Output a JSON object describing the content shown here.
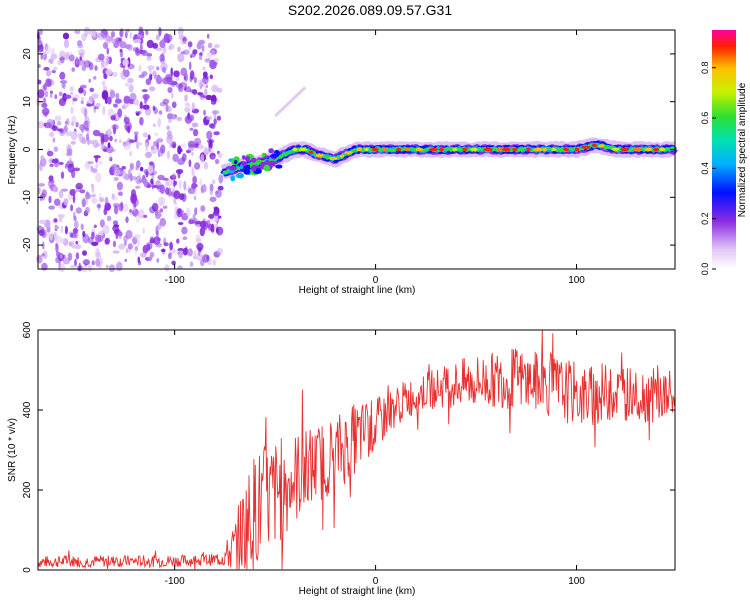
{
  "title": "S202.2026.089.09.57.G31",
  "colors": {
    "snr_line": "#e83030",
    "noise_purple": "#8a2be2",
    "background": "#ffffff"
  },
  "chart_data": [
    {
      "type": "heatmap",
      "name": "spectrogram",
      "xlabel": "Height of straight line (km)",
      "ylabel": "Frequency (Hz)",
      "xlim": [
        -168,
        149
      ],
      "ylim": [
        -25,
        25
      ],
      "xticks": [
        -100,
        0,
        100
      ],
      "xtick_labels": [
        "-100",
        "0",
        "100"
      ],
      "yticks": [
        -20,
        -10,
        0,
        10,
        20
      ],
      "ytick_labels": [
        "-20",
        "-10",
        "0",
        "10",
        "20"
      ],
      "noise_region_x": [
        -168,
        -77
      ],
      "signal_onset_x": -76,
      "signal_trace": {
        "x": [
          -76,
          -70,
          -60,
          -50,
          -45,
          -40,
          -35,
          -30,
          -20,
          -10,
          0,
          20,
          40,
          60,
          80,
          100,
          110,
          120,
          130,
          140,
          149
        ],
        "freq": [
          -5,
          -4,
          -3,
          -2,
          -1,
          0,
          0,
          -1,
          -2,
          0,
          0,
          0,
          0,
          0,
          0,
          0,
          1,
          0,
          0,
          0,
          0
        ]
      },
      "faint_streak": {
        "x": [
          -50,
          -35
        ],
        "freq": [
          7,
          13
        ]
      },
      "colorbar": {
        "label": "Normalized spectral amplitude",
        "range": [
          0,
          0.95
        ],
        "ticks": [
          0.0,
          0.2,
          0.4,
          0.6,
          0.8
        ],
        "tick_labels": [
          "0.0",
          "0.2",
          "0.4",
          "0.6",
          "0.8"
        ]
      }
    },
    {
      "type": "line",
      "name": "snr",
      "xlabel": "Height of straight line (km)",
      "ylabel": "SNR (10 * v/v)",
      "xlim": [
        -168,
        149
      ],
      "ylim": [
        0,
        600
      ],
      "xticks": [
        -100,
        0,
        100
      ],
      "xtick_labels": [
        "-100",
        "0",
        "100"
      ],
      "yticks": [
        0,
        200,
        400,
        600
      ],
      "ytick_labels": [
        "0",
        "200",
        "400",
        "600"
      ],
      "series": [
        {
          "name": "SNR",
          "x": [
            -168,
            -150,
            -130,
            -110,
            -90,
            -80,
            -75,
            -70,
            -65,
            -60,
            -55,
            -50,
            -45,
            -40,
            -35,
            -30,
            -25,
            -20,
            -15,
            -10,
            -5,
            0,
            5,
            10,
            15,
            20,
            30,
            40,
            50,
            60,
            70,
            75,
            80,
            90,
            100,
            105,
            110,
            120,
            130,
            140,
            149
          ],
          "y": [
            20,
            22,
            22,
            22,
            24,
            26,
            35,
            55,
            110,
            150,
            170,
            190,
            210,
            230,
            250,
            260,
            280,
            290,
            310,
            330,
            345,
            360,
            385,
            410,
            425,
            440,
            455,
            465,
            470,
            475,
            480,
            470,
            470,
            455,
            440,
            430,
            440,
            445,
            440,
            435,
            430
          ],
          "noise_amplitude": [
            15,
            15,
            15,
            15,
            15,
            15,
            30,
            70,
            130,
            150,
            150,
            140,
            130,
            120,
            110,
            100,
            100,
            100,
            95,
            90,
            80,
            70,
            60,
            50,
            50,
            50,
            50,
            60,
            70,
            70,
            80,
            80,
            80,
            80,
            80,
            80,
            80,
            70,
            70,
            70,
            70
          ]
        }
      ]
    }
  ]
}
